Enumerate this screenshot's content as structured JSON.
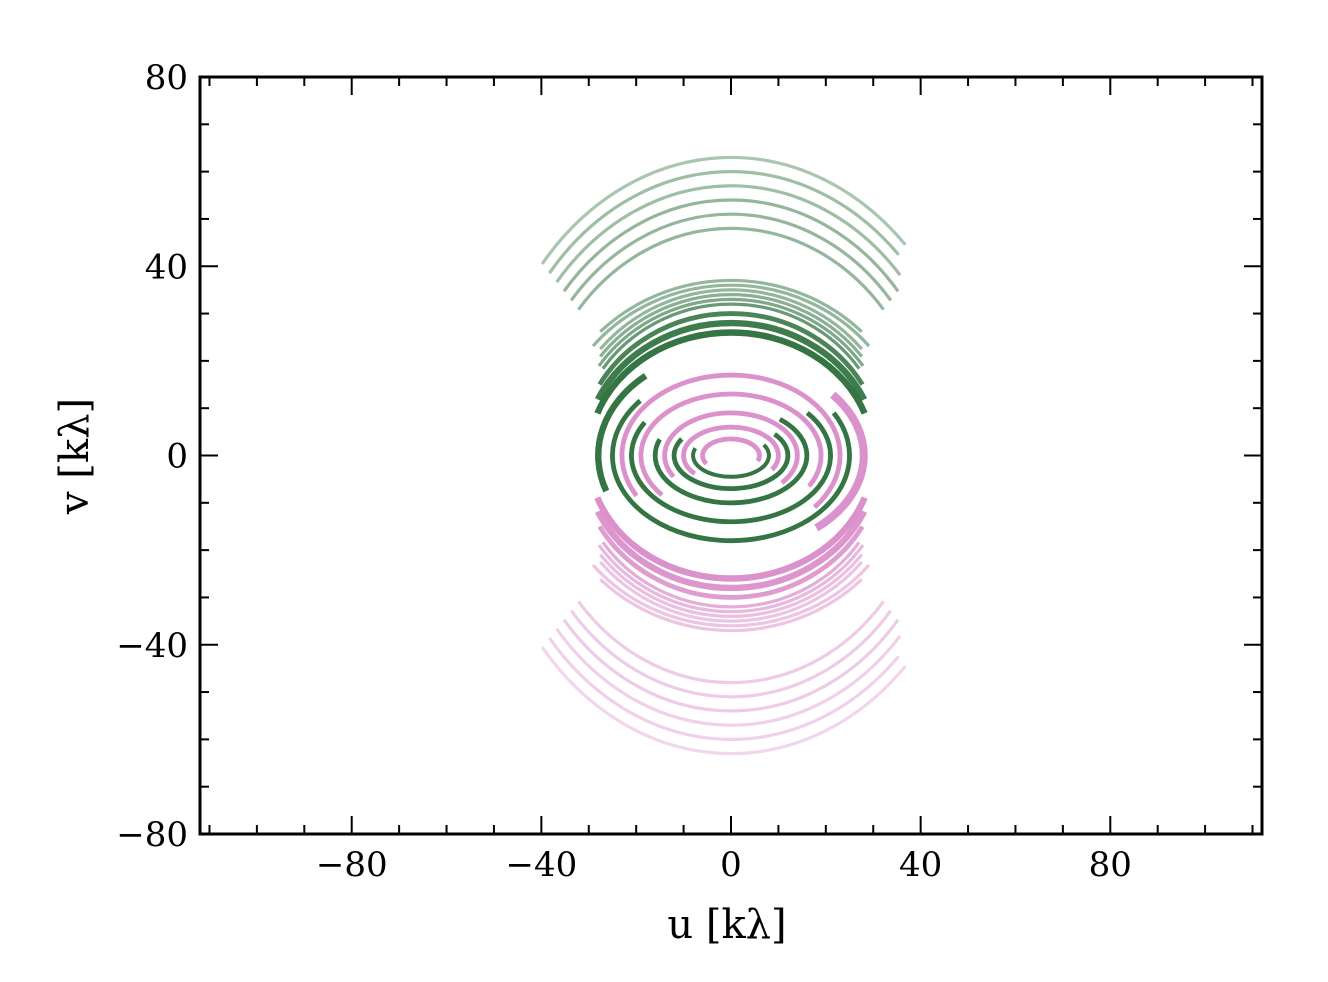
{
  "chart_data": {
    "type": "scatter",
    "title": "",
    "xlabel": "u [kλ]",
    "ylabel": "v [kλ]",
    "xlim": [
      -112,
      112
    ],
    "ylim": [
      -80,
      80
    ],
    "xticks": [
      -80,
      -40,
      0,
      40,
      80
    ],
    "xtick_labels": [
      "−80",
      "−40",
      "0",
      "40",
      "80"
    ],
    "yticks": [
      -80,
      -40,
      0,
      40,
      80
    ],
    "ytick_labels": [
      "−80",
      "−40",
      "0",
      "40",
      "80"
    ],
    "x_minor_step": 10,
    "y_minor_step": 10,
    "grid": false,
    "legend": null,
    "colors": {
      "green": "#2a6e3a",
      "pink": "#d98bc8"
    },
    "series": [
      {
        "color": "#2a6e3a",
        "description_of_tracks": "uv-coverage arcs (elliptical tracks) centered at origin",
        "arcs": [
          {
            "rx": 8,
            "ry": 4.5,
            "start_deg": -200,
            "end_deg": 30,
            "alpha": 0.95,
            "width": 2.5
          },
          {
            "rx": 12,
            "ry": 7,
            "start_deg": -210,
            "end_deg": 40,
            "alpha": 0.95,
            "width": 3
          },
          {
            "rx": 16,
            "ry": 10,
            "start_deg": -200,
            "end_deg": 50,
            "alpha": 0.95,
            "width": 3
          },
          {
            "rx": 21,
            "ry": 14,
            "start_deg": -210,
            "end_deg": 40,
            "alpha": 0.95,
            "width": 3
          },
          {
            "rx": 25,
            "ry": 18,
            "start_deg": -220,
            "end_deg": 30,
            "alpha": 0.95,
            "width": 3
          },
          {
            "rx": 28,
            "ry": 22,
            "start_deg": 130,
            "end_deg": 200,
            "alpha": 0.95,
            "width": 4
          },
          {
            "rx": 30,
            "ry": 26,
            "start_deg": 20,
            "end_deg": 160,
            "alpha": 0.95,
            "width": 4
          },
          {
            "rx": 31,
            "ry": 28,
            "start_deg": 25,
            "end_deg": 155,
            "alpha": 0.9,
            "width": 4
          },
          {
            "rx": 32,
            "ry": 30,
            "start_deg": 30,
            "end_deg": 150,
            "alpha": 0.85,
            "width": 3
          },
          {
            "rx": 33,
            "ry": 32,
            "start_deg": 35,
            "end_deg": 145,
            "alpha": 0.7,
            "width": 2
          },
          {
            "rx": 34,
            "ry": 33,
            "start_deg": 35,
            "end_deg": 145,
            "alpha": 0.6,
            "width": 2
          },
          {
            "rx": 35,
            "ry": 34,
            "start_deg": 38,
            "end_deg": 142,
            "alpha": 0.55,
            "width": 2
          },
          {
            "rx": 36,
            "ry": 35,
            "start_deg": 40,
            "end_deg": 140,
            "alpha": 0.5,
            "width": 2
          },
          {
            "rx": 38,
            "ry": 36,
            "start_deg": 40,
            "end_deg": 140,
            "alpha": 0.5,
            "width": 2
          },
          {
            "rx": 39,
            "ry": 37,
            "start_deg": 45,
            "end_deg": 135,
            "alpha": 0.5,
            "width": 2
          },
          {
            "rx": 42,
            "ry": 48,
            "start_deg": 40,
            "end_deg": 140,
            "alpha": 0.5,
            "width": 2
          },
          {
            "rx": 44,
            "ry": 51,
            "start_deg": 40,
            "end_deg": 140,
            "alpha": 0.5,
            "width": 2
          },
          {
            "rx": 46,
            "ry": 54,
            "start_deg": 40,
            "end_deg": 140,
            "alpha": 0.5,
            "width": 2
          },
          {
            "rx": 48,
            "ry": 57,
            "start_deg": 42,
            "end_deg": 140,
            "alpha": 0.45,
            "width": 2
          },
          {
            "rx": 50,
            "ry": 60,
            "start_deg": 45,
            "end_deg": 140,
            "alpha": 0.45,
            "width": 2
          },
          {
            "rx": 52,
            "ry": 63,
            "start_deg": 45,
            "end_deg": 140,
            "alpha": 0.4,
            "width": 2
          }
        ]
      },
      {
        "color": "#d98bc8",
        "description_of_tracks": "conjugate uv-coverage arcs (mirror of green through origin)",
        "arcs": [
          {
            "rx": 6,
            "ry": 3.5,
            "start_deg": -20,
            "end_deg": 210,
            "alpha": 0.95,
            "width": 3
          },
          {
            "rx": 10,
            "ry": 6,
            "start_deg": -30,
            "end_deg": 220,
            "alpha": 0.95,
            "width": 3
          },
          {
            "rx": 14,
            "ry": 9,
            "start_deg": -40,
            "end_deg": 210,
            "alpha": 0.95,
            "width": 3
          },
          {
            "rx": 19,
            "ry": 13,
            "start_deg": -30,
            "end_deg": 220,
            "alpha": 0.95,
            "width": 3
          },
          {
            "rx": 23,
            "ry": 17,
            "start_deg": -40,
            "end_deg": 210,
            "alpha": 0.95,
            "width": 3
          },
          {
            "rx": 28,
            "ry": 20,
            "start_deg": -50,
            "end_deg": 40,
            "alpha": 0.95,
            "width": 5
          },
          {
            "rx": 30,
            "ry": 26,
            "start_deg": 200,
            "end_deg": 340,
            "alpha": 0.95,
            "width": 4
          },
          {
            "rx": 31,
            "ry": 28,
            "start_deg": 205,
            "end_deg": 335,
            "alpha": 0.9,
            "width": 4
          },
          {
            "rx": 32,
            "ry": 30,
            "start_deg": 210,
            "end_deg": 330,
            "alpha": 0.85,
            "width": 3
          },
          {
            "rx": 33,
            "ry": 32,
            "start_deg": 215,
            "end_deg": 325,
            "alpha": 0.7,
            "width": 2
          },
          {
            "rx": 34,
            "ry": 33,
            "start_deg": 215,
            "end_deg": 325,
            "alpha": 0.6,
            "width": 2
          },
          {
            "rx": 35,
            "ry": 34,
            "start_deg": 218,
            "end_deg": 322,
            "alpha": 0.55,
            "width": 2
          },
          {
            "rx": 36,
            "ry": 35,
            "start_deg": 220,
            "end_deg": 320,
            "alpha": 0.5,
            "width": 2
          },
          {
            "rx": 38,
            "ry": 36,
            "start_deg": 220,
            "end_deg": 320,
            "alpha": 0.5,
            "width": 2
          },
          {
            "rx": 39,
            "ry": 37,
            "start_deg": 225,
            "end_deg": 315,
            "alpha": 0.5,
            "width": 2
          },
          {
            "rx": 42,
            "ry": 48,
            "start_deg": 220,
            "end_deg": 320,
            "alpha": 0.45,
            "width": 2
          },
          {
            "rx": 44,
            "ry": 51,
            "start_deg": 220,
            "end_deg": 320,
            "alpha": 0.45,
            "width": 2
          },
          {
            "rx": 46,
            "ry": 54,
            "start_deg": 220,
            "end_deg": 320,
            "alpha": 0.45,
            "width": 2
          },
          {
            "rx": 48,
            "ry": 57,
            "start_deg": 220,
            "end_deg": 318,
            "alpha": 0.4,
            "width": 2
          },
          {
            "rx": 50,
            "ry": 60,
            "start_deg": 220,
            "end_deg": 315,
            "alpha": 0.4,
            "width": 2
          },
          {
            "rx": 52,
            "ry": 63,
            "start_deg": 220,
            "end_deg": 315,
            "alpha": 0.35,
            "width": 2
          }
        ]
      }
    ]
  }
}
